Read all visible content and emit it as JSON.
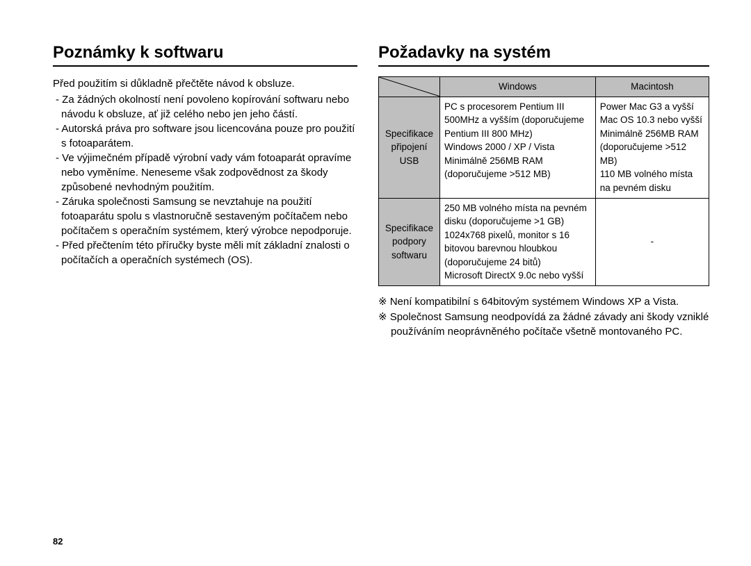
{
  "left": {
    "title": "Poznámky k softwaru",
    "intro": "Před použitím si důkladně přečtěte návod k obsluze.",
    "bullets": [
      "- Za žádných okolností není povoleno kopírování softwaru nebo návodu k obsluze, ať již celého nebo jen jeho částí.",
      "- Autorská práva pro software jsou licencována pouze pro použití s fotoaparátem.",
      "- Ve výjimečném případě výrobní vady vám fotoaparát opravíme nebo vyměníme. Neneseme však zodpovědnost za škody způsobené nevhodným použitím.",
      "- Záruka společnosti Samsung se nevztahuje na použití fotoaparátu spolu s vlastnoručně sestaveným počítačem nebo počítačem s operačním systémem, který výrobce nepodporuje.",
      "- Před přečtením této příručky byste měli mít základní znalosti o počítačích a operačních systémech (OS)."
    ]
  },
  "right": {
    "title": "Požadavky na systém",
    "table": {
      "col_headers": [
        "Windows",
        "Macintosh"
      ],
      "rows": [
        {
          "label": "Specifikace připojení USB",
          "windows": "PC s procesorem Pentium III 500MHz a vyšším (doporučujeme Pentium III 800 MHz)\nWindows 2000 / XP / Vista\nMinimálně 256MB RAM (doporučujeme >512 MB)",
          "mac": "Power Mac G3 a vyšší\nMac OS 10.3 nebo vyšší\nMinimálně 256MB RAM (doporučujeme >512 MB)\n110 MB volného místa na pevném disku"
        },
        {
          "label": "Specifikace podpory softwaru",
          "windows": "250 MB volného místa na pevném disku (doporučujeme >1 GB)\n1024x768 pixelů, monitor s 16 bitovou barevnou hloubkou (doporučujeme 24 bitů)\nMicrosoft DirectX 9.0c nebo vyšší",
          "mac": "-"
        }
      ]
    },
    "notes": [
      "※ Není kompatibilní s 64bitovým systémem Windows XP a Vista.",
      "※ Společnost Samsung neodpovídá za žádné závady ani škody vzniklé používáním neoprávněného počítače všetně montovaného PC."
    ]
  },
  "page_number": "82",
  "colors": {
    "header_bg": "#bfbfbf",
    "border": "#000000",
    "text": "#000000",
    "page_bg": "#ffffff"
  }
}
